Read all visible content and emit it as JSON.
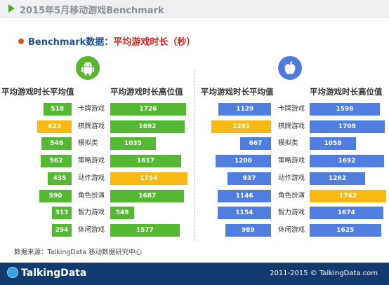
{
  "header": {
    "title": "2015年5月移动游戏Benchmark"
  },
  "subtitle": {
    "part1": "Benchmark数据：",
    "part2": "平均游戏时长（秒）"
  },
  "colors": {
    "green": "#55b832",
    "blue": "#4f7de0",
    "yellow": "#f9b812"
  },
  "footer": {
    "logo": "TalkingData",
    "copyright": "2011-2015 © TalkingData.com"
  },
  "source": "数据来源：TalkingData 移动数据研究中心",
  "chart_data": [
    {
      "type": "bar",
      "platform_icon": "android-icon",
      "categories": [
        "卡牌游戏",
        "棋牌游戏",
        "模拟类",
        "策略游戏",
        "动作游戏",
        "角色扮演",
        "智力游戏",
        "休闲游戏"
      ],
      "series": [
        {
          "name": "平均游戏时长平均值",
          "values": [
            518,
            623,
            546,
            562,
            435,
            590,
            313,
            294
          ],
          "highlight_index": 1
        },
        {
          "name": "平均游戏时长高位值",
          "values": [
            1726,
            1692,
            1035,
            1617,
            1754,
            1687,
            549,
            1577
          ],
          "highlight_index": 4
        }
      ]
    },
    {
      "type": "bar",
      "platform_icon": "apple-icon",
      "categories": [
        "卡牌游戏",
        "棋牌游戏",
        "模拟类",
        "策略游戏",
        "动作游戏",
        "角色扮演",
        "智力游戏",
        "休闲游戏"
      ],
      "series": [
        {
          "name": "平均游戏时长平均值",
          "values": [
            1129,
            1281,
            667,
            1200,
            937,
            1146,
            1154,
            989
          ],
          "highlight_index": 1
        },
        {
          "name": "平均游戏时长高位值",
          "values": [
            1598,
            1708,
            1058,
            1692,
            1262,
            1742,
            1674,
            1625
          ],
          "highlight_index": 5
        }
      ]
    }
  ]
}
